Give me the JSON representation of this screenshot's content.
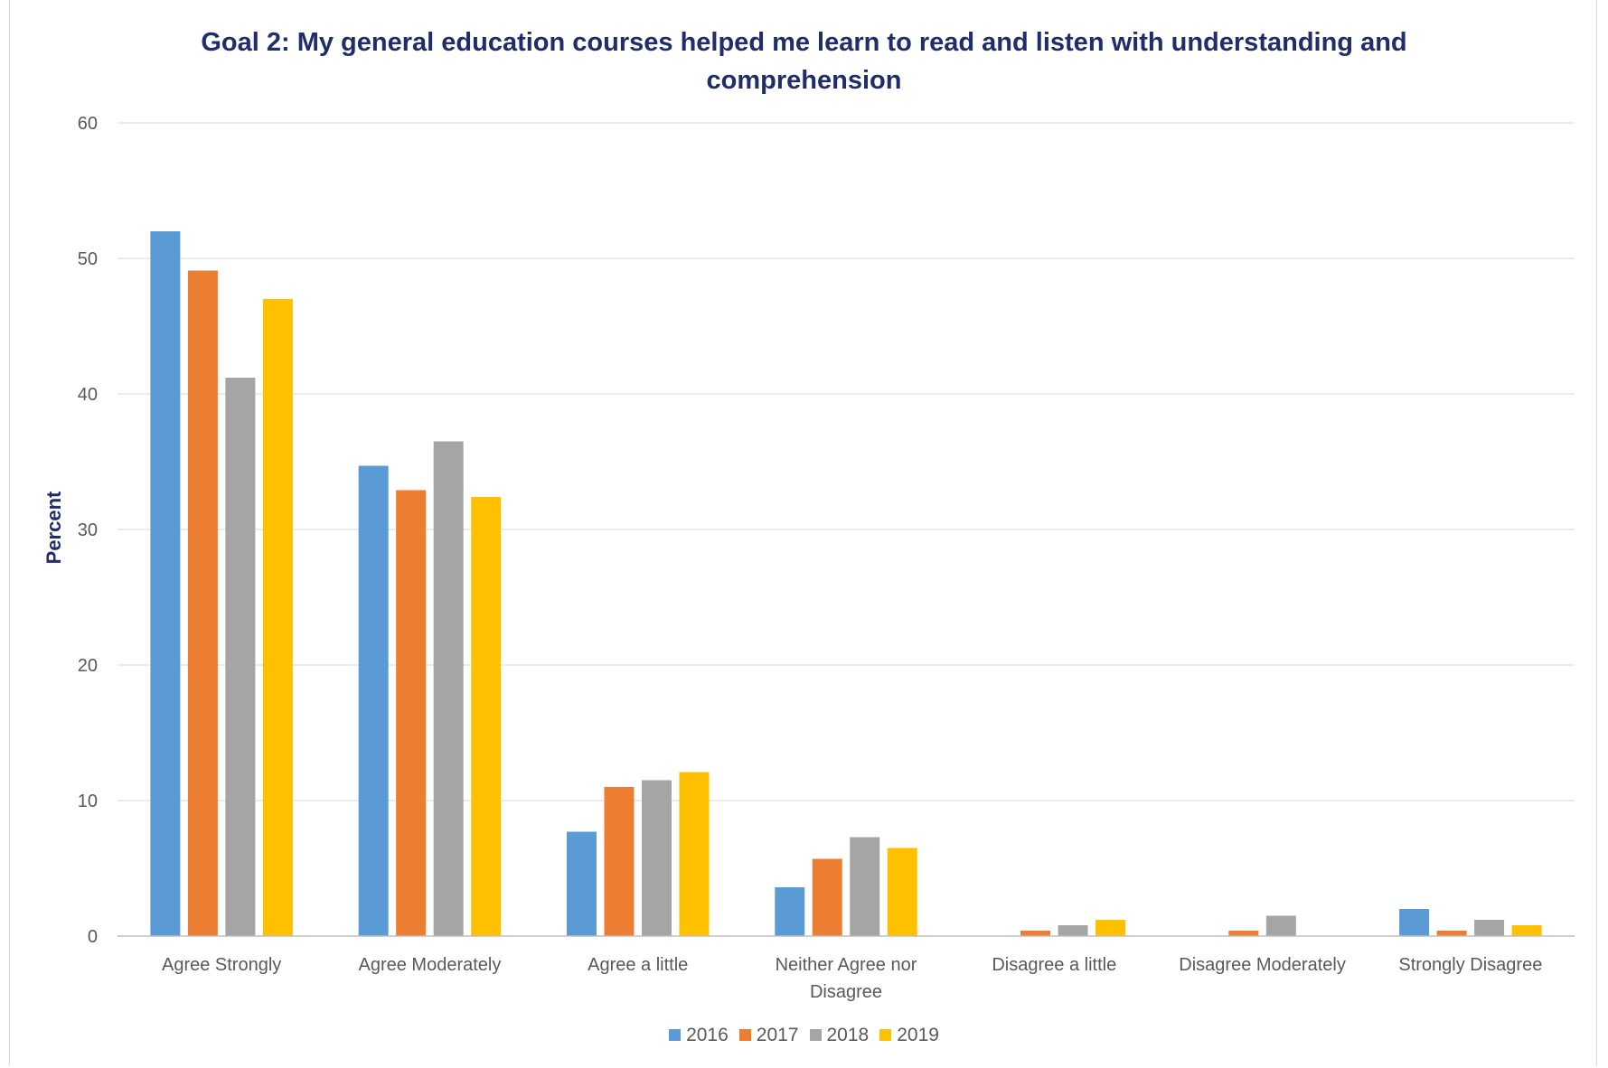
{
  "chart_data": {
    "type": "bar",
    "title": "Goal 2: My general education courses helped me learn to read and listen with understanding and comprehension",
    "ylabel": "Percent",
    "xlabel": "",
    "ylim": [
      0,
      60
    ],
    "yticks": [
      0,
      10,
      20,
      30,
      40,
      50,
      60
    ],
    "grid": true,
    "legend_position": "bottom",
    "categories": [
      "Agree Strongly",
      "Agree Moderately",
      "Agree a little",
      "Neither Agree nor Disagree",
      "Disagree a little",
      "Disagree Moderately",
      "Strongly Disagree"
    ],
    "category_lines": [
      [
        "Agree Strongly"
      ],
      [
        "Agree Moderately"
      ],
      [
        "Agree a little"
      ],
      [
        "Neither Agree nor",
        "Disagree"
      ],
      [
        "Disagree a little"
      ],
      [
        "Disagree Moderately"
      ],
      [
        "Strongly Disagree"
      ]
    ],
    "series": [
      {
        "name": "2016",
        "color": "#5b9bd5",
        "values": [
          52.0,
          34.7,
          7.7,
          3.6,
          0,
          0,
          2.0
        ]
      },
      {
        "name": "2017",
        "color": "#ed7d31",
        "values": [
          49.1,
          32.9,
          11.0,
          5.7,
          0.4,
          0.4,
          0.4
        ]
      },
      {
        "name": "2018",
        "color": "#a5a5a5",
        "values": [
          41.2,
          36.5,
          11.5,
          7.3,
          0.8,
          1.5,
          1.2
        ]
      },
      {
        "name": "2019",
        "color": "#ffc000",
        "values": [
          47.0,
          32.4,
          12.1,
          6.5,
          1.2,
          0,
          0.8
        ]
      }
    ]
  }
}
